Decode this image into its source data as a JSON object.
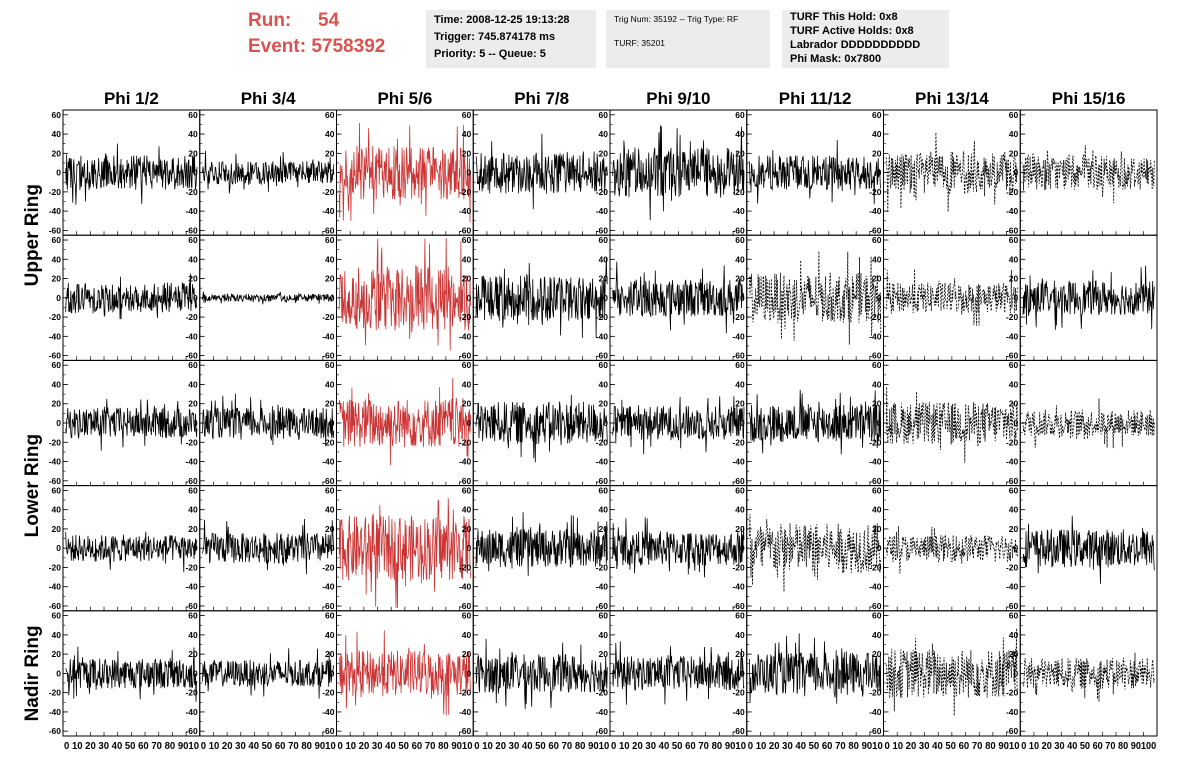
{
  "header": {
    "run_label": "Run:",
    "run_value": "54",
    "event_label": "Event:",
    "event_value": "5758392",
    "accent_color": "#d9534f"
  },
  "info_boxes": [
    {
      "lines": [
        "Time: 2008-12-25 19:13:28",
        "Trigger: 745.874178 ms",
        "Priority: 5 -- Queue: 5"
      ]
    },
    {
      "lines": [
        "Trig Num: 35192 -- Trig Type: RF",
        "",
        "TURF: 35201"
      ]
    },
    {
      "lines": [
        "TURF This Hold: 0x8",
        "TURF Active Holds: 0x8",
        "Labrador DDDDDDDDDD",
        "Phi Mask: 0x7800"
      ]
    }
  ],
  "chart_data": {
    "type": "line",
    "column_labels": [
      "Phi 1/2",
      "Phi 3/4",
      "Phi 5/6",
      "Phi 7/8",
      "Phi 9/10",
      "Phi 11/12",
      "Phi 13/14",
      "Phi 15/16"
    ],
    "row_labels": [
      "Upper Ring",
      "Lower Ring",
      "Nadir Ring"
    ],
    "ylim": [
      -65,
      65
    ],
    "xlim": [
      0,
      100
    ],
    "y_ticks": [
      "60",
      "40",
      "20",
      "0",
      "-20",
      "-40",
      "-60"
    ],
    "x_tick_text": "0 10 20 30 40 50 60 70 80 9010",
    "last_x_tick_text": "0 10 20 30 40 50 60 70 80 90100",
    "grid": false,
    "highlight_color": "#cc3333",
    "panels_note_styles": [
      "solid",
      "dashed"
    ],
    "panel_style": [
      [
        "solid",
        "solid",
        "red",
        "solid",
        "solid",
        "solid",
        "dashed",
        "dashed"
      ],
      [
        "solid",
        "solid",
        "red",
        "solid",
        "solid",
        "dashed",
        "dashed",
        "solid"
      ],
      [
        "solid",
        "solid",
        "red",
        "solid",
        "solid",
        "solid",
        "dashed",
        "dashed"
      ],
      [
        "solid",
        "solid",
        "red",
        "solid",
        "solid",
        "dashed",
        "dashed",
        "solid"
      ],
      [
        "solid",
        "solid",
        "red",
        "solid",
        "solid",
        "solid",
        "dashed",
        "dashed"
      ]
    ],
    "panel_amplitude": [
      [
        18,
        12,
        28,
        22,
        26,
        18,
        22,
        18
      ],
      [
        16,
        4,
        34,
        24,
        20,
        26,
        16,
        18
      ],
      [
        16,
        16,
        26,
        22,
        18,
        20,
        22,
        14
      ],
      [
        14,
        16,
        34,
        20,
        18,
        26,
        14,
        20
      ],
      [
        16,
        14,
        24,
        20,
        18,
        22,
        26,
        16
      ]
    ]
  }
}
